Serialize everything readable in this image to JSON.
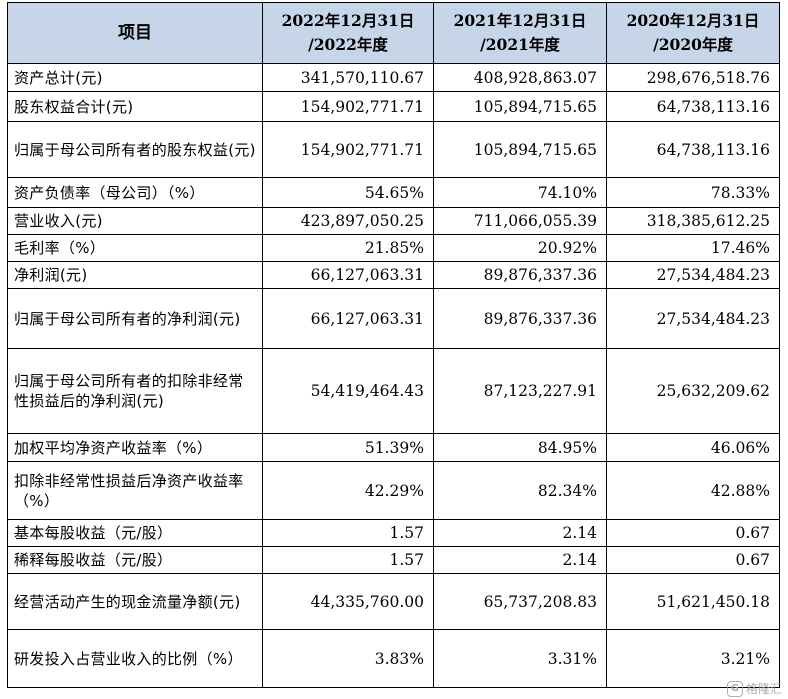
{
  "table": {
    "headers": [
      "项目",
      "2022年12月31日 /2022年度",
      "2021年12月31日 /2021年度",
      "2020年12月31日 /2020年度"
    ],
    "rows": [
      {
        "label": "资产总计(元)",
        "values": [
          "341,570,110.67",
          "408,928,863.07",
          "298,676,518.76"
        ]
      },
      {
        "label": "股东权益合计(元)",
        "values": [
          "154,902,771.71",
          "105,894,715.65",
          "64,738,113.16"
        ]
      },
      {
        "label": "归属于母公司所有者的股东权益(元)",
        "values": [
          "154,902,771.71",
          "105,894,715.65",
          "64,738,113.16"
        ]
      },
      {
        "label": "资产负债率（母公司）（%）",
        "values": [
          "54.65%",
          "74.10%",
          "78.33%"
        ]
      },
      {
        "label": "营业收入(元)",
        "values": [
          "423,897,050.25",
          "711,066,055.39",
          "318,385,612.25"
        ]
      },
      {
        "label": "毛利率（%）",
        "values": [
          "21.85%",
          "20.92%",
          "17.46%"
        ]
      },
      {
        "label": "净利润(元)",
        "values": [
          "66,127,063.31",
          "89,876,337.36",
          "27,534,484.23"
        ]
      },
      {
        "label": "归属于母公司所有者的净利润(元)",
        "values": [
          "66,127,063.31",
          "89,876,337.36",
          "27,534,484.23"
        ]
      },
      {
        "label": "归属于母公司所有者的扣除非经常性损益后的净利润(元)",
        "values": [
          "54,419,464.43",
          "87,123,227.91",
          "25,632,209.62"
        ]
      },
      {
        "label": "加权平均净资产收益率（%）",
        "values": [
          "51.39%",
          "84.95%",
          "46.06%"
        ]
      },
      {
        "label": "扣除非经常性损益后净资产收益率（%）",
        "values": [
          "42.29%",
          "82.34%",
          "42.88%"
        ]
      },
      {
        "label": "基本每股收益（元/股）",
        "values": [
          "1.57",
          "2.14",
          "0.67"
        ]
      },
      {
        "label": "稀释每股收益（元/股）",
        "values": [
          "1.57",
          "2.14",
          "0.67"
        ]
      },
      {
        "label": "经营活动产生的现金流量净额(元)",
        "values": [
          "44,335,760.00",
          "65,737,208.83",
          "51,621,450.18"
        ]
      },
      {
        "label": "研发投入占营业收入的比例（%）",
        "values": [
          "3.83%",
          "3.31%",
          "3.21%"
        ]
      }
    ]
  },
  "watermark": {
    "text": "格隆汇",
    "logo_glyph": "G",
    "color": "#9aa3ad"
  },
  "colors": {
    "header_bg": "#c6d5e8",
    "border": "#000000"
  }
}
